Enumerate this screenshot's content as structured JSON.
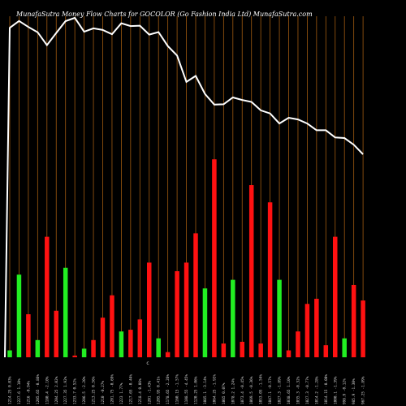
{
  "chart_data": {
    "type": "bar",
    "title": "MunafaSutra  Money Flow  Charts for GOCOLOR                       (Go Fashion  India  Ltd) MunafaSutra.com",
    "x_marker": "c",
    "colors": {
      "background": "#000000",
      "up": "#22ee22",
      "down": "#ff1111",
      "grid": "#a05a10",
      "line": "#ffffff"
    },
    "categories": [
      "1214.25 0.03%",
      "1227.6 1.10%",
      "1216 -0.94%",
      "1205.65 -0.86%",
      "1180.4 -2.10%",
      "1204.25 2.02%",
      "1227.35 1.92%",
      "1233.7 0.52%",
      "1206.5 -2.20%",
      "1213.25 0.56%",
      "1210 -0.27%",
      "1201.75 -0.69%",
      "1223 1.77%",
      "1217.65 -0.44%",
      "1218.4 0.06%",
      "1201 -1.43%",
      "1205.95 0.41%",
      "1178.65 -2.26%",
      "1160.15 -1.57%",
      "1108.55 -4.45%",
      "1120.25 1.06%",
      "1085.1 -3.14%",
      "1064.25 -1.92%",
      "1065 0.07%",
      "1078.2 1.24%",
      "1073.4 -0.45%",
      "1069.5 -0.36%",
      "1053.05 -1.54%",
      "1047.1 -0.57%",
      "1027.3 -1.89%",
      "1038.65 1.10%",
      "1035.3 -0.32%",
      "1027.3 -0.77%",
      "1014.2 -1.28%",
      "1014.15 -0.00%",
      "1000.1 -1.39%",
      "998.9 -0.12%",
      "985.9 -1.30%",
      "967.25 -1.89%"
    ],
    "series": [
      {
        "values": [
          4,
          48,
          -25,
          10,
          -70,
          -27,
          52,
          -1,
          5,
          -10,
          -23,
          -36,
          15,
          -16,
          -22,
          -55,
          11,
          -3,
          -50,
          -55,
          -72,
          40,
          -115,
          -8,
          45,
          -9,
          -100,
          -8,
          -90,
          45,
          -4,
          -15,
          -31,
          -34,
          -7,
          -70,
          11,
          -42,
          -33
        ]
      },
      {
        "values": [
          1214.25,
          1227.6,
          1216,
          1205.65,
          1180.4,
          1204.25,
          1227.35,
          1233.7,
          1206.5,
          1213.25,
          1210,
          1201.75,
          1223,
          1217.65,
          1218.4,
          1201,
          1205.95,
          1178.65,
          1160.15,
          1108.55,
          1120.25,
          1085.1,
          1064.25,
          1065,
          1078.2,
          1073.4,
          1069.5,
          1053.05,
          1047.1,
          1027.3,
          1038.65,
          1035.3,
          1027.3,
          1014.2,
          1014.15,
          1000.1,
          998.9,
          985.9,
          967.25
        ]
      }
    ],
    "y_max_visible": 100,
    "grid": true
  }
}
